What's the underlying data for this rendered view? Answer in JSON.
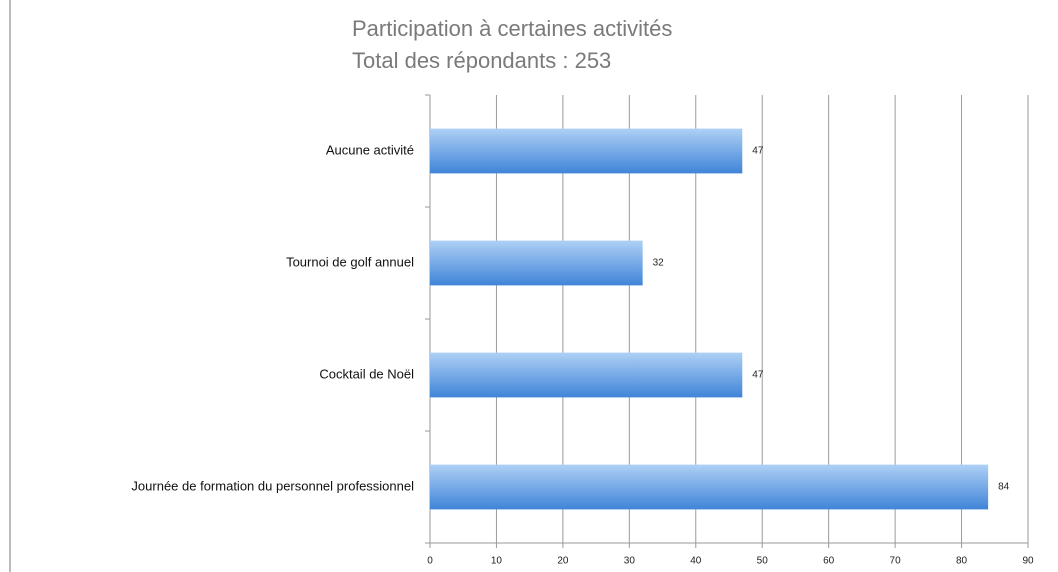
{
  "chart_data": {
    "type": "bar",
    "orientation": "horizontal",
    "title": "Participation à certaines activités",
    "subtitle": "Total des répondants : 253",
    "categories": [
      "Aucune activité",
      "Tournoi de golf annuel",
      "Cocktail de Noël",
      "Journée de formation du personnel professionnel"
    ],
    "values": [
      47,
      32,
      47,
      84
    ],
    "color": "#3f84d8",
    "xlim": [
      0,
      90
    ],
    "xticks": [
      0,
      10,
      20,
      30,
      40,
      50,
      60,
      70,
      80,
      90
    ],
    "grid": true
  }
}
